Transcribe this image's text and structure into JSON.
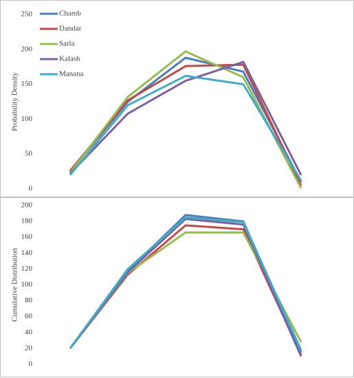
{
  "chart_data": [
    {
      "type": "line",
      "ylabel": "Probability Density",
      "categories": [
        null,
        null,
        null,
        null,
        null
      ],
      "ylim": [
        0,
        250
      ],
      "yticks": [
        0,
        50,
        100,
        150,
        200,
        250
      ],
      "legend": "top-left",
      "series": [
        {
          "name": "Chamb",
          "color": "#4a7ebb",
          "values": [
            25,
            125,
            188,
            168,
            10
          ]
        },
        {
          "name": "Dandar",
          "color": "#be4b48",
          "values": [
            26,
            127,
            176,
            178,
            5
          ]
        },
        {
          "name": "Sarla",
          "color": "#98b954",
          "values": [
            23,
            132,
            197,
            160,
            1
          ]
        },
        {
          "name": "Kalash",
          "color": "#7d60a0",
          "values": [
            22,
            108,
            155,
            182,
            20
          ]
        },
        {
          "name": "Manana",
          "color": "#46aac5",
          "values": [
            20,
            120,
            162,
            150,
            12
          ]
        }
      ]
    },
    {
      "type": "line",
      "ylabel": "Cumulative Distribution",
      "categories": [
        null,
        null,
        null,
        null,
        null
      ],
      "ylim": [
        0,
        200
      ],
      "yticks": [
        0,
        20,
        40,
        60,
        80,
        100,
        120,
        140,
        160,
        180,
        200
      ],
      "series": [
        {
          "color": "#be4b48",
          "values": [
            20,
            113,
            175,
            170,
            12
          ]
        },
        {
          "color": "#98b954",
          "values": [
            20,
            115,
            166,
            166,
            28
          ]
        },
        {
          "color": "#7d60a0",
          "values": [
            20,
            116,
            183,
            176,
            10
          ]
        },
        {
          "color": "#4a7ebb",
          "values": [
            20,
            118,
            188,
            180,
            15
          ]
        },
        {
          "color": "#46aac5",
          "values": [
            20,
            120,
            185,
            179,
            18
          ]
        }
      ]
    }
  ]
}
